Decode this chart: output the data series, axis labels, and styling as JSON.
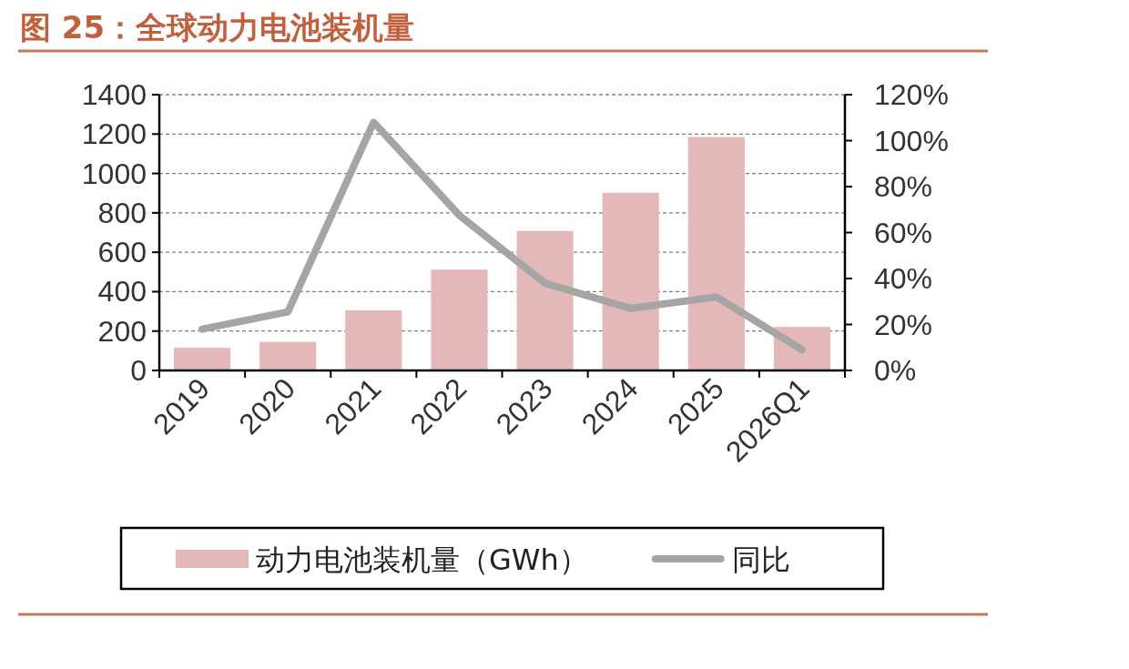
{
  "chart_data": {
    "type": "bar",
    "title": "图 25：全球动力电池装机量",
    "categories": [
      "2019",
      "2020",
      "2021",
      "2022",
      "2023",
      "2024",
      "2025",
      "2026Q1"
    ],
    "series": [
      {
        "name": "动力电池装机量（GWh）",
        "color": "#e4b8b8",
        "values": [
          115,
          145,
          305,
          512,
          708,
          902,
          1185,
          221
        ]
      },
      {
        "name": "同比",
        "type": "line",
        "axis": "y2",
        "color": "#a5a5a5",
        "values": [
          18,
          25.5,
          108,
          67.5,
          38,
          27,
          32,
          9
        ]
      }
    ],
    "ylim": [
      0,
      1400
    ],
    "yticks": [
      0,
      200,
      400,
      600,
      800,
      1000,
      1200,
      1400
    ],
    "y2lim": [
      0,
      120
    ],
    "y2ticks": [
      {
        "value": 0,
        "label": "0%"
      },
      {
        "value": 20,
        "label": "20%"
      },
      {
        "value": 40,
        "label": "40%"
      },
      {
        "value": 60,
        "label": "60%"
      },
      {
        "value": 80,
        "label": "80%"
      },
      {
        "value": 100,
        "label": "100%"
      },
      {
        "value": 120,
        "label": "120%"
      }
    ],
    "grid": "y",
    "legend": "bottom"
  }
}
